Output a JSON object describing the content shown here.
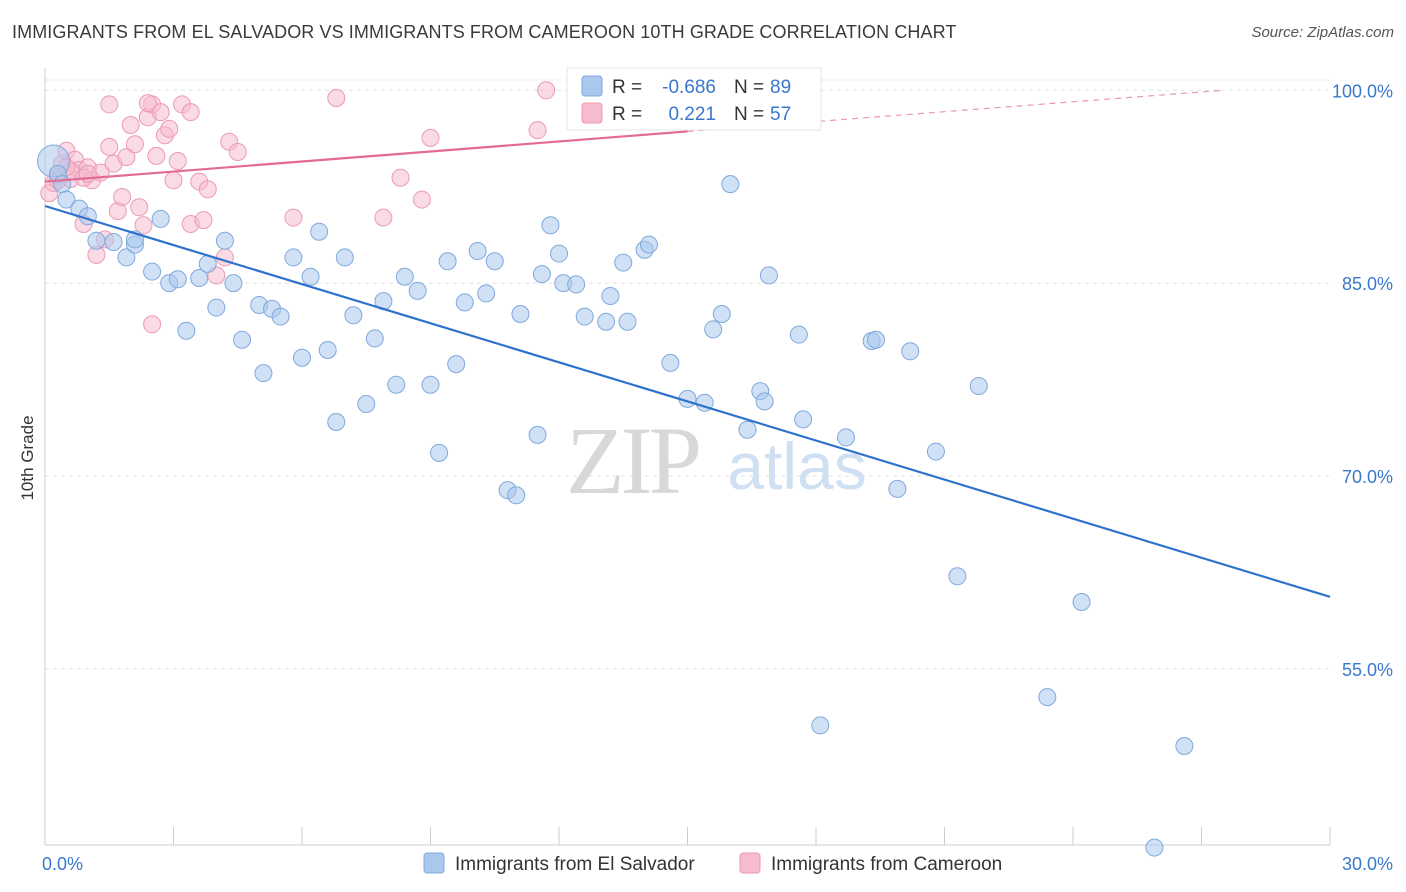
{
  "title": "IMMIGRANTS FROM EL SALVADOR VS IMMIGRANTS FROM CAMEROON 10TH GRADE CORRELATION CHART",
  "source": "Source: ZipAtlas.com",
  "watermark": {
    "zip": "ZIP",
    "atlas": "atlas"
  },
  "colors": {
    "blue_fill": "#aac8ee",
    "blue_stroke": "#7fa8dc",
    "blue_line": "#2f72cc",
    "blue_text": "#3a78cc",
    "pink_fill": "#f6bccd",
    "pink_stroke": "#ec9ab4",
    "pink_line": "#e36a94",
    "grid": "#e2e2e2",
    "axis_text": "#3a78cc"
  },
  "legend_box": {
    "rows": [
      {
        "r_label": "R =",
        "r_value": "-0.686",
        "n_label": "N =",
        "n_value": "89"
      },
      {
        "r_label": "R =",
        "r_value": "0.221",
        "n_label": "N =",
        "n_value": "57"
      }
    ]
  },
  "bottom_legend": [
    "Immigrants from El Salvador",
    "Immigrants from Cameroon"
  ],
  "chart_data": {
    "type": "scatter",
    "title": "IMMIGRANTS FROM EL SALVADOR VS IMMIGRANTS FROM CAMEROON 10TH GRADE CORRELATION CHART",
    "xlabel": "",
    "ylabel": "10th Grade",
    "xlim": [
      0,
      30
    ],
    "ylim": [
      41.3,
      100.8
    ],
    "x_tick_labels": [
      "0.0%",
      "30.0%"
    ],
    "y_ticks": [
      55,
      70,
      85,
      100
    ],
    "y_tick_labels": [
      "55.0%",
      "70.0%",
      "85.0%",
      "100.0%"
    ],
    "grid": true,
    "legend_position": "top-center",
    "series": [
      {
        "name": "Immigrants from El Salvador",
        "R": -0.686,
        "N": 89,
        "trend": {
          "x": [
            0,
            30
          ],
          "y": [
            91.0,
            60.6
          ]
        },
        "points": [
          [
            0.2,
            94.5
          ],
          [
            0.3,
            93.5
          ],
          [
            0.4,
            92.7
          ],
          [
            0.5,
            91.5
          ],
          [
            0.8,
            90.8
          ],
          [
            1.0,
            90.2
          ],
          [
            1.2,
            88.3
          ],
          [
            1.6,
            88.2
          ],
          [
            1.9,
            87.0
          ],
          [
            2.1,
            88.0
          ],
          [
            2.1,
            88.4
          ],
          [
            2.5,
            85.9
          ],
          [
            2.7,
            90.0
          ],
          [
            2.9,
            85.0
          ],
          [
            3.1,
            85.3
          ],
          [
            3.3,
            81.3
          ],
          [
            3.6,
            85.4
          ],
          [
            3.8,
            86.5
          ],
          [
            4.0,
            83.1
          ],
          [
            4.2,
            88.3
          ],
          [
            4.4,
            85.0
          ],
          [
            4.6,
            80.6
          ],
          [
            5.0,
            83.3
          ],
          [
            5.1,
            78.0
          ],
          [
            5.3,
            83.0
          ],
          [
            5.5,
            82.4
          ],
          [
            5.8,
            87.0
          ],
          [
            6.0,
            79.2
          ],
          [
            6.2,
            85.5
          ],
          [
            6.4,
            89.0
          ],
          [
            6.6,
            79.8
          ],
          [
            6.8,
            74.2
          ],
          [
            7.0,
            87.0
          ],
          [
            7.2,
            82.5
          ],
          [
            7.5,
            75.6
          ],
          [
            7.7,
            80.7
          ],
          [
            7.9,
            83.6
          ],
          [
            8.2,
            77.1
          ],
          [
            8.4,
            85.5
          ],
          [
            8.7,
            84.4
          ],
          [
            9.0,
            77.1
          ],
          [
            9.2,
            71.8
          ],
          [
            9.4,
            86.7
          ],
          [
            9.6,
            78.7
          ],
          [
            9.8,
            83.5
          ],
          [
            10.1,
            87.5
          ],
          [
            10.3,
            84.2
          ],
          [
            10.5,
            86.7
          ],
          [
            10.8,
            68.9
          ],
          [
            11.0,
            68.5
          ],
          [
            11.1,
            82.6
          ],
          [
            11.5,
            73.2
          ],
          [
            11.6,
            85.7
          ],
          [
            11.8,
            89.5
          ],
          [
            12.0,
            87.3
          ],
          [
            12.1,
            85.0
          ],
          [
            12.4,
            84.9
          ],
          [
            12.6,
            82.4
          ],
          [
            13.1,
            82.0
          ],
          [
            13.2,
            84.0
          ],
          [
            13.5,
            86.6
          ],
          [
            13.6,
            82.0
          ],
          [
            14.0,
            87.6
          ],
          [
            14.1,
            88.0
          ],
          [
            14.6,
            78.8
          ],
          [
            15.0,
            76.0
          ],
          [
            15.4,
            75.7
          ],
          [
            15.6,
            81.4
          ],
          [
            15.8,
            82.6
          ],
          [
            16.0,
            92.7
          ],
          [
            16.4,
            73.6
          ],
          [
            16.7,
            76.6
          ],
          [
            16.8,
            75.8
          ],
          [
            16.9,
            85.6
          ],
          [
            17.6,
            81.0
          ],
          [
            17.7,
            74.4
          ],
          [
            18.7,
            73.0
          ],
          [
            19.3,
            80.5
          ],
          [
            19.4,
            80.6
          ],
          [
            19.9,
            69.0
          ],
          [
            20.2,
            79.7
          ],
          [
            20.8,
            71.9
          ],
          [
            21.3,
            62.2
          ],
          [
            21.8,
            77.0
          ],
          [
            24.2,
            60.2
          ],
          [
            23.4,
            52.8
          ],
          [
            18.1,
            50.6
          ],
          [
            26.6,
            49.0
          ],
          [
            25.9,
            41.1
          ]
        ]
      },
      {
        "name": "Immigrants from Cameroon",
        "R": 0.221,
        "N": 57,
        "trend": {
          "x": [
            0,
            15
          ],
          "y": [
            92.9,
            96.8
          ]
        },
        "trend_extension": {
          "x": [
            15,
            27.5
          ],
          "y": [
            96.8,
            100.0
          ]
        },
        "points": [
          [
            0.1,
            92.0
          ],
          [
            0.2,
            92.8
          ],
          [
            0.3,
            93.3
          ],
          [
            0.4,
            94.3
          ],
          [
            0.5,
            95.3
          ],
          [
            0.6,
            93.1
          ],
          [
            0.7,
            94.6
          ],
          [
            0.8,
            93.8
          ],
          [
            0.9,
            89.6
          ],
          [
            1.0,
            94.0
          ],
          [
            1.1,
            93.0
          ],
          [
            1.2,
            87.2
          ],
          [
            1.3,
            93.6
          ],
          [
            1.4,
            88.4
          ],
          [
            1.5,
            95.6
          ],
          [
            1.6,
            94.3
          ],
          [
            1.7,
            90.6
          ],
          [
            1.8,
            91.7
          ],
          [
            1.9,
            94.8
          ],
          [
            2.0,
            97.3
          ],
          [
            2.1,
            95.8
          ],
          [
            2.2,
            90.9
          ],
          [
            2.3,
            89.5
          ],
          [
            2.4,
            97.9
          ],
          [
            2.5,
            98.9
          ],
          [
            2.6,
            94.9
          ],
          [
            2.7,
            98.3
          ],
          [
            2.8,
            96.5
          ],
          [
            2.9,
            97.0
          ],
          [
            3.0,
            93.0
          ],
          [
            3.1,
            94.5
          ],
          [
            3.2,
            98.9
          ],
          [
            3.4,
            89.6
          ],
          [
            3.6,
            92.9
          ],
          [
            3.7,
            89.9
          ],
          [
            3.8,
            92.3
          ],
          [
            4.0,
            85.6
          ],
          [
            4.2,
            87.0
          ],
          [
            4.3,
            96.0
          ],
          [
            4.5,
            95.2
          ],
          [
            5.8,
            90.1
          ],
          [
            6.8,
            99.4
          ],
          [
            7.9,
            90.1
          ],
          [
            8.3,
            93.2
          ],
          [
            8.8,
            91.5
          ],
          [
            9.0,
            96.3
          ],
          [
            11.5,
            96.9
          ],
          [
            11.7,
            100.0
          ],
          [
            0.6,
            93.7
          ],
          [
            0.3,
            93.0
          ],
          [
            0.9,
            93.2
          ],
          [
            1.0,
            93.5
          ],
          [
            2.5,
            81.8
          ],
          [
            1.5,
            98.9
          ],
          [
            3.4,
            98.3
          ],
          [
            2.4,
            99.0
          ],
          [
            0.5,
            94.0
          ]
        ]
      }
    ]
  }
}
